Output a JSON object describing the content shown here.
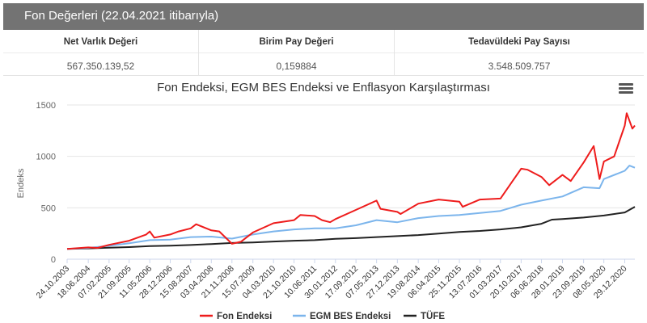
{
  "header": {
    "title": "Fon Değerleri (22.04.2021 itibarıyla)"
  },
  "stats": [
    {
      "label": "Net Varlık Değeri",
      "value": "567.350.139,52"
    },
    {
      "label": "Birim Pay Değeri",
      "value": "0,159884"
    },
    {
      "label": "Tedavüldeki Pay Sayısı",
      "value": "3.548.509.757"
    }
  ],
  "menu": {
    "icon": "hamburger-menu-icon"
  },
  "chart_data": {
    "type": "line",
    "title": "Fon Endeksi, EGM BES Endeksi ve Enflasyon Karşılaştırması",
    "ylabel": "Endeks",
    "xlabel": "",
    "ylim": [
      0,
      1500
    ],
    "yticks": [
      0,
      500,
      1000,
      1500
    ],
    "xlim": [
      "2003-10-24",
      "2021-04-22"
    ],
    "xticks": [
      "24.10.2003",
      "18.06.2004",
      "07.02.2005",
      "21.09.2005",
      "11.05.2006",
      "28.12.2006",
      "15.08.2007",
      "03.04.2008",
      "21.11.2008",
      "15.07.2009",
      "04.03.2010",
      "21.10.2010",
      "10.06.2011",
      "30.01.2012",
      "17.09.2012",
      "07.05.2013",
      "27.12.2013",
      "19.08.2014",
      "06.04.2015",
      "25.11.2015",
      "13.07.2016",
      "01.03.2017",
      "20.10.2017",
      "06.06.2018",
      "28.01.2019",
      "23.09.2019",
      "08.05.2020",
      "29.12.2020"
    ],
    "grid": true,
    "legend_position": "bottom",
    "series": [
      {
        "name": "Fon Endeksi",
        "color": "#ee1c1c",
        "points": [
          [
            "2003-10-24",
            100
          ],
          [
            "2004-06-18",
            115
          ],
          [
            "2004-10-01",
            110
          ],
          [
            "2005-02-07",
            140
          ],
          [
            "2005-09-21",
            180
          ],
          [
            "2006-04-01",
            240
          ],
          [
            "2006-05-11",
            270
          ],
          [
            "2006-07-01",
            210
          ],
          [
            "2006-12-28",
            240
          ],
          [
            "2007-04-01",
            270
          ],
          [
            "2007-08-15",
            300
          ],
          [
            "2007-10-15",
            340
          ],
          [
            "2008-04-03",
            280
          ],
          [
            "2008-07-01",
            270
          ],
          [
            "2008-11-21",
            150
          ],
          [
            "2009-03-01",
            170
          ],
          [
            "2009-07-15",
            260
          ],
          [
            "2010-03-04",
            350
          ],
          [
            "2010-10-21",
            380
          ],
          [
            "2011-01-01",
            430
          ],
          [
            "2011-06-10",
            420
          ],
          [
            "2011-09-01",
            380
          ],
          [
            "2011-12-01",
            360
          ],
          [
            "2012-01-30",
            390
          ],
          [
            "2012-09-17",
            480
          ],
          [
            "2013-05-07",
            570
          ],
          [
            "2013-06-20",
            490
          ],
          [
            "2013-12-27",
            460
          ],
          [
            "2014-02-01",
            440
          ],
          [
            "2014-08-19",
            540
          ],
          [
            "2015-04-06",
            580
          ],
          [
            "2015-11-25",
            560
          ],
          [
            "2016-01-01",
            510
          ],
          [
            "2016-07-13",
            580
          ],
          [
            "2017-03-01",
            590
          ],
          [
            "2017-10-20",
            880
          ],
          [
            "2018-01-01",
            870
          ],
          [
            "2018-06-06",
            800
          ],
          [
            "2018-09-01",
            720
          ],
          [
            "2019-01-28",
            820
          ],
          [
            "2019-05-01",
            760
          ],
          [
            "2019-09-23",
            940
          ],
          [
            "2020-01-15",
            1100
          ],
          [
            "2020-03-20",
            780
          ],
          [
            "2020-05-08",
            950
          ],
          [
            "2020-09-01",
            1000
          ],
          [
            "2020-12-29",
            1300
          ],
          [
            "2021-01-20",
            1420
          ],
          [
            "2021-03-25",
            1270
          ],
          [
            "2021-04-22",
            1300
          ]
        ]
      },
      {
        "name": "EGM BES Endeksi",
        "color": "#7cb5ec",
        "points": [
          [
            "2003-10-24",
            100
          ],
          [
            "2004-06-18",
            110
          ],
          [
            "2005-02-07",
            130
          ],
          [
            "2005-09-21",
            155
          ],
          [
            "2006-05-11",
            185
          ],
          [
            "2006-12-28",
            190
          ],
          [
            "2007-08-15",
            215
          ],
          [
            "2008-04-03",
            220
          ],
          [
            "2008-11-21",
            200
          ],
          [
            "2009-07-15",
            240
          ],
          [
            "2010-03-04",
            270
          ],
          [
            "2010-10-21",
            290
          ],
          [
            "2011-06-10",
            300
          ],
          [
            "2012-01-30",
            300
          ],
          [
            "2012-09-17",
            330
          ],
          [
            "2013-05-07",
            380
          ],
          [
            "2013-12-27",
            360
          ],
          [
            "2014-08-19",
            400
          ],
          [
            "2015-04-06",
            420
          ],
          [
            "2015-11-25",
            430
          ],
          [
            "2016-07-13",
            450
          ],
          [
            "2017-03-01",
            470
          ],
          [
            "2017-10-20",
            530
          ],
          [
            "2018-06-06",
            570
          ],
          [
            "2019-01-28",
            610
          ],
          [
            "2019-09-23",
            700
          ],
          [
            "2020-03-20",
            690
          ],
          [
            "2020-05-08",
            780
          ],
          [
            "2020-12-29",
            860
          ],
          [
            "2021-02-20",
            910
          ],
          [
            "2021-04-22",
            890
          ]
        ]
      },
      {
        "name": "TÜFE",
        "color": "#222222",
        "points": [
          [
            "2003-10-24",
            100
          ],
          [
            "2004-06-18",
            105
          ],
          [
            "2005-02-07",
            112
          ],
          [
            "2005-09-21",
            118
          ],
          [
            "2006-05-11",
            127
          ],
          [
            "2006-12-28",
            132
          ],
          [
            "2007-08-15",
            138
          ],
          [
            "2008-04-03",
            148
          ],
          [
            "2008-11-21",
            158
          ],
          [
            "2009-07-15",
            163
          ],
          [
            "2010-03-04",
            172
          ],
          [
            "2010-10-21",
            180
          ],
          [
            "2011-06-10",
            185
          ],
          [
            "2012-01-30",
            198
          ],
          [
            "2012-09-17",
            205
          ],
          [
            "2013-05-07",
            215
          ],
          [
            "2013-12-27",
            225
          ],
          [
            "2014-08-19",
            235
          ],
          [
            "2015-04-06",
            250
          ],
          [
            "2015-11-25",
            265
          ],
          [
            "2016-07-13",
            275
          ],
          [
            "2017-03-01",
            290
          ],
          [
            "2017-10-20",
            310
          ],
          [
            "2018-06-06",
            345
          ],
          [
            "2018-10-01",
            385
          ],
          [
            "2019-01-28",
            390
          ],
          [
            "2019-09-23",
            405
          ],
          [
            "2020-05-08",
            425
          ],
          [
            "2020-12-29",
            455
          ],
          [
            "2021-04-22",
            510
          ]
        ]
      }
    ]
  }
}
